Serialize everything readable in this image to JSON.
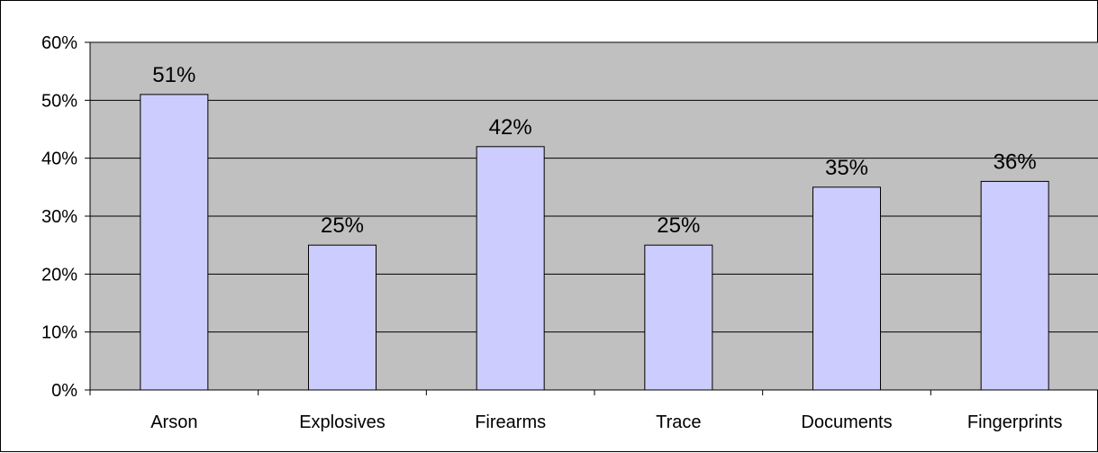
{
  "chart_data": {
    "type": "bar",
    "categories": [
      "Arson",
      "Explosives",
      "Firearms",
      "Trace",
      "Documents",
      "Fingerprints"
    ],
    "values": [
      51,
      25,
      42,
      25,
      35,
      36
    ],
    "data_labels": [
      "51%",
      "25%",
      "42%",
      "25%",
      "35%",
      "36%"
    ],
    "title": "",
    "xlabel": "",
    "ylabel": "",
    "ylim": [
      0,
      60
    ],
    "y_ticks": [
      0,
      10,
      20,
      30,
      40,
      50,
      60
    ],
    "y_tick_labels": [
      "0%",
      "10%",
      "20%",
      "30%",
      "40%",
      "50%",
      "60%"
    ],
    "grid": true,
    "legend": "none",
    "colors": {
      "plot_background": "#c0c0c0",
      "bar_fill": "#ccccff",
      "bar_stroke": "#000000",
      "gridline": "#000000"
    }
  }
}
